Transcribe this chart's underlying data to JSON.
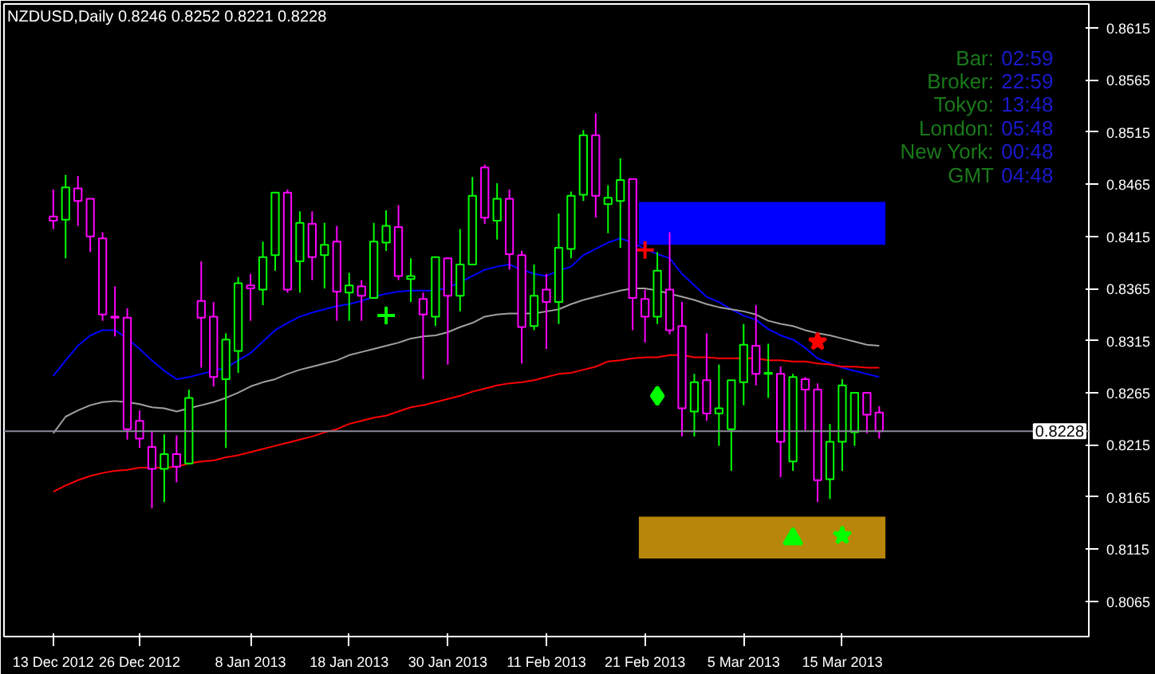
{
  "chart_data": {
    "type": "candlestick",
    "title": "NZDUSD,Daily 0.8246 0.8252 0.8221 0.8228",
    "categories": [
      "13 Dec 2012",
      null,
      null,
      null,
      null,
      null,
      null,
      "26 Dec 2012",
      null,
      null,
      null,
      null,
      null,
      null,
      null,
      null,
      "8 Jan 2013",
      null,
      null,
      null,
      null,
      null,
      null,
      null,
      "18 Jan 2013",
      null,
      null,
      null,
      null,
      null,
      null,
      null,
      "30 Jan 2013",
      null,
      null,
      null,
      null,
      null,
      null,
      null,
      "11 Feb 2013",
      null,
      null,
      null,
      null,
      null,
      null,
      null,
      "21 Feb 2013",
      null,
      null,
      null,
      null,
      null,
      null,
      null,
      "5 Mar 2013",
      null,
      null,
      null,
      null,
      null,
      null,
      null,
      "15 Mar 2013",
      null,
      null,
      null
    ],
    "ohlc": [
      [
        0.8434,
        0.846,
        0.8422,
        0.843
      ],
      [
        0.8431,
        0.8474,
        0.8394,
        0.8462
      ],
      [
        0.8461,
        0.8473,
        0.8425,
        0.8449
      ],
      [
        0.8451,
        0.8451,
        0.84,
        0.8415
      ],
      [
        0.8413,
        0.8419,
        0.8334,
        0.834
      ],
      [
        0.8338,
        0.8367,
        0.8319,
        0.8337
      ],
      [
        0.8337,
        0.8346,
        0.822,
        0.823
      ],
      [
        0.8238,
        0.8248,
        0.8212,
        0.8221
      ],
      [
        0.8213,
        0.8228,
        0.8154,
        0.8192
      ],
      [
        0.8192,
        0.8225,
        0.816,
        0.8206
      ],
      [
        0.8206,
        0.8224,
        0.8179,
        0.8194
      ],
      [
        0.8197,
        0.8268,
        0.8196,
        0.826
      ],
      [
        0.8353,
        0.8391,
        0.8289,
        0.8337
      ],
      [
        0.8338,
        0.8352,
        0.8271,
        0.828
      ],
      [
        0.8278,
        0.8322,
        0.8212,
        0.8316
      ],
      [
        0.8305,
        0.8376,
        0.8284,
        0.837
      ],
      [
        0.8368,
        0.8379,
        0.8334,
        0.8365
      ],
      [
        0.8364,
        0.841,
        0.8349,
        0.8395
      ],
      [
        0.8397,
        0.8457,
        0.8382,
        0.8457
      ],
      [
        0.8457,
        0.846,
        0.8361,
        0.8364
      ],
      [
        0.8391,
        0.8439,
        0.8361,
        0.8428
      ],
      [
        0.8427,
        0.8439,
        0.8373,
        0.8395
      ],
      [
        0.8397,
        0.8428,
        0.8365,
        0.8407
      ],
      [
        0.841,
        0.8425,
        0.8334,
        0.8362
      ],
      [
        0.8361,
        0.838,
        0.8334,
        0.8368
      ],
      [
        0.8367,
        0.8373,
        0.8334,
        0.8358
      ],
      [
        0.8356,
        0.8428,
        0.8355,
        0.841
      ],
      [
        0.8409,
        0.844,
        0.8401,
        0.8425
      ],
      [
        0.8424,
        0.8445,
        0.8373,
        0.8377
      ],
      [
        0.8374,
        0.8394,
        0.8352,
        0.8377
      ],
      [
        0.8355,
        0.8361,
        0.8278,
        0.834
      ],
      [
        0.8338,
        0.8395,
        0.8329,
        0.8395
      ],
      [
        0.8394,
        0.8394,
        0.8292,
        0.8358
      ],
      [
        0.8358,
        0.8422,
        0.8343,
        0.8388
      ],
      [
        0.8388,
        0.8472,
        0.8388,
        0.8454
      ],
      [
        0.8481,
        0.8484,
        0.8427,
        0.8433
      ],
      [
        0.843,
        0.8466,
        0.8412,
        0.8451
      ],
      [
        0.8451,
        0.846,
        0.8383,
        0.8398
      ],
      [
        0.8397,
        0.8401,
        0.8293,
        0.8328
      ],
      [
        0.8329,
        0.8388,
        0.8325,
        0.8358
      ],
      [
        0.8364,
        0.8379,
        0.8307,
        0.8352
      ],
      [
        0.8352,
        0.8437,
        0.8331,
        0.8404
      ],
      [
        0.8403,
        0.8458,
        0.8394,
        0.8454
      ],
      [
        0.8455,
        0.8517,
        0.8449,
        0.8512
      ],
      [
        0.8512,
        0.8533,
        0.8433,
        0.8454
      ],
      [
        0.8446,
        0.8464,
        0.8418,
        0.8452
      ],
      [
        0.8449,
        0.849,
        0.8404,
        0.8469
      ],
      [
        0.847,
        0.847,
        0.8325,
        0.8356
      ],
      [
        0.8355,
        0.8364,
        0.8313,
        0.8338
      ],
      [
        0.8338,
        0.84,
        0.8331,
        0.8382
      ],
      [
        0.8364,
        0.8419,
        0.8321,
        0.8325
      ],
      [
        0.8329,
        0.8352,
        0.8223,
        0.825
      ],
      [
        0.8247,
        0.8283,
        0.8223,
        0.8275
      ],
      [
        0.8277,
        0.8322,
        0.8238,
        0.8245
      ],
      [
        0.8245,
        0.8292,
        0.8214,
        0.825
      ],
      [
        0.823,
        0.8277,
        0.819,
        0.8277
      ],
      [
        0.8275,
        0.8331,
        0.8253,
        0.8311
      ],
      [
        0.831,
        0.8349,
        0.8272,
        0.8283
      ],
      [
        0.8283,
        0.8312,
        0.826,
        0.8284
      ],
      [
        0.8283,
        0.829,
        0.8184,
        0.8218
      ],
      [
        0.8199,
        0.8283,
        0.819,
        0.828
      ],
      [
        0.8278,
        0.828,
        0.8229,
        0.8268
      ],
      [
        0.8268,
        0.8274,
        0.816,
        0.8181
      ],
      [
        0.8182,
        0.8235,
        0.8163,
        0.8218
      ],
      [
        0.8218,
        0.8278,
        0.819,
        0.8272
      ],
      [
        0.8227,
        0.8265,
        0.8214,
        0.8265
      ],
      [
        0.8265,
        0.8265,
        0.8226,
        0.8244
      ],
      [
        0.8246,
        0.8252,
        0.8221,
        0.8228
      ]
    ],
    "colors": [
      "#ff00ff",
      "#00ff00",
      "#ff00ff",
      "#ff00ff",
      "#ff00ff",
      "#ff00ff",
      "#ff00ff",
      "#ff00ff",
      "#ff00ff",
      "#00ff00",
      "#ff00ff",
      "#00ff00",
      "#ff00ff",
      "#ff00ff",
      "#00ff00",
      "#00ff00",
      "#ff00ff",
      "#00ff00",
      "#00ff00",
      "#ff00ff",
      "#00ff00",
      "#ff00ff",
      "#00ff00",
      "#ff00ff",
      "#00ff00",
      "#ff00ff",
      "#00ff00",
      "#00ff00",
      "#ff00ff",
      "#00ff00",
      "#ff00ff",
      "#00ff00",
      "#ff00ff",
      "#00ff00",
      "#00ff00",
      "#ff00ff",
      "#00ff00",
      "#ff00ff",
      "#ff00ff",
      "#00ff00",
      "#ff00ff",
      "#00ff00",
      "#00ff00",
      "#00ff00",
      "#ff00ff",
      "#00ff00",
      "#00ff00",
      "#ff00ff",
      "#ff00ff",
      "#00ff00",
      "#ff00ff",
      "#ff00ff",
      "#00ff00",
      "#ff00ff",
      "#00ff00",
      "#00ff00",
      "#00ff00",
      "#ff00ff",
      "#00ff00",
      "#ff00ff",
      "#00ff00",
      "#ff00ff",
      "#ff00ff",
      "#00ff00",
      "#00ff00",
      "#00ff00",
      "#ff00ff",
      "#ff00ff"
    ],
    "ylim": [
      0.8031,
      0.8638
    ],
    "yticks": [
      0.8065,
      0.8115,
      0.8165,
      0.8215,
      0.8265,
      0.8315,
      0.8365,
      0.8415,
      0.8465,
      0.8515,
      0.8565,
      0.8615
    ],
    "ref_lines": [
      {
        "axis": "y",
        "value": 0.8228,
        "label": "0.8228",
        "color": "#8a8a9a"
      }
    ],
    "bands": [
      {
        "axis": "y",
        "from": 0.8407,
        "to": 0.8448,
        "color": "#0000ff"
      },
      {
        "axis": "y",
        "from": 0.8106,
        "to": 0.8146,
        "color": "#b8860b"
      }
    ],
    "series": [
      {
        "type": "line",
        "color": "#0000ff",
        "values": [
          0.8281,
          0.8296,
          0.831,
          0.832,
          0.8325,
          0.8325,
          0.8317,
          0.8307,
          0.8296,
          0.8286,
          0.8278,
          0.828,
          0.8283,
          0.8286,
          0.8289,
          0.8296,
          0.8303,
          0.8314,
          0.8325,
          0.8332,
          0.8338,
          0.8342,
          0.8345,
          0.8348,
          0.835,
          0.8353,
          0.8357,
          0.836,
          0.8362,
          0.8363,
          0.8363,
          0.8363,
          0.8366,
          0.8371,
          0.8377,
          0.8383,
          0.8386,
          0.8388,
          0.8383,
          0.8379,
          0.8377,
          0.8382,
          0.8386,
          0.8397,
          0.8403,
          0.8409,
          0.8413,
          0.8409,
          0.8403,
          0.8398,
          0.8394,
          0.8379,
          0.8368,
          0.8357,
          0.8352,
          0.8345,
          0.8339,
          0.8335,
          0.8326,
          0.832,
          0.8316,
          0.8308,
          0.8298,
          0.8293,
          0.8289,
          0.8286,
          0.8283,
          0.828
        ]
      },
      {
        "type": "line",
        "color": "#a0a0a0",
        "values": [
          0.8226,
          0.8242,
          0.8248,
          0.8253,
          0.8256,
          0.8257,
          0.8256,
          0.8254,
          0.8251,
          0.825,
          0.8247,
          0.825,
          0.8253,
          0.8256,
          0.826,
          0.8265,
          0.8271,
          0.8275,
          0.8278,
          0.8283,
          0.8287,
          0.829,
          0.8293,
          0.8296,
          0.8301,
          0.8304,
          0.8307,
          0.831,
          0.8313,
          0.8317,
          0.8319,
          0.832,
          0.8323,
          0.8328,
          0.8332,
          0.8338,
          0.834,
          0.8341,
          0.8341,
          0.8341,
          0.8343,
          0.8345,
          0.835,
          0.8354,
          0.8357,
          0.836,
          0.8363,
          0.8365,
          0.8365,
          0.8363,
          0.836,
          0.8357,
          0.8354,
          0.835,
          0.8347,
          0.8345,
          0.8343,
          0.834,
          0.8334,
          0.8331,
          0.8329,
          0.8325,
          0.8322,
          0.832,
          0.8317,
          0.8314,
          0.8311,
          0.831
        ]
      },
      {
        "type": "line",
        "color": "#ff0000",
        "values": [
          0.817,
          0.8176,
          0.8181,
          0.8185,
          0.8188,
          0.819,
          0.8191,
          0.8193,
          0.8193,
          0.8193,
          0.8194,
          0.8197,
          0.8199,
          0.82,
          0.8203,
          0.8205,
          0.8208,
          0.8211,
          0.8214,
          0.8217,
          0.822,
          0.8223,
          0.8227,
          0.823,
          0.8235,
          0.8238,
          0.8241,
          0.8243,
          0.8247,
          0.8251,
          0.8253,
          0.8256,
          0.8259,
          0.8262,
          0.8266,
          0.8269,
          0.8272,
          0.8274,
          0.8275,
          0.8277,
          0.828,
          0.8283,
          0.8284,
          0.8287,
          0.829,
          0.8295,
          0.8296,
          0.8298,
          0.8299,
          0.8299,
          0.8301,
          0.8301,
          0.8299,
          0.8299,
          0.8298,
          0.8298,
          0.8298,
          0.8298,
          0.8296,
          0.8296,
          0.8295,
          0.8295,
          0.8293,
          0.8292,
          0.829,
          0.829,
          0.8289,
          0.8289
        ]
      },
      {
        "type": "scatter",
        "marker": "cross",
        "color": "#00ff00",
        "values": [
          null,
          null,
          null,
          null,
          null,
          null,
          null,
          null,
          null,
          null,
          null,
          null,
          null,
          null,
          null,
          null,
          null,
          null,
          null,
          null,
          null,
          null,
          null,
          null,
          null,
          null,
          null,
          0.8339,
          null,
          null,
          null,
          null,
          null,
          null,
          null,
          null,
          null,
          null,
          null,
          null,
          null,
          null,
          null,
          null,
          null,
          null,
          null,
          null,
          null,
          null,
          null,
          null,
          null,
          null,
          null,
          null,
          null,
          null,
          null,
          null,
          null,
          null,
          null,
          null,
          null,
          null,
          null,
          null
        ]
      },
      {
        "type": "scatter",
        "marker": "cross",
        "color": "#ff0000",
        "values": [
          null,
          null,
          null,
          null,
          null,
          null,
          null,
          null,
          null,
          null,
          null,
          null,
          null,
          null,
          null,
          null,
          null,
          null,
          null,
          null,
          null,
          null,
          null,
          null,
          null,
          null,
          null,
          null,
          null,
          null,
          null,
          null,
          null,
          null,
          null,
          null,
          null,
          null,
          null,
          null,
          null,
          null,
          null,
          null,
          null,
          null,
          null,
          null,
          0.8402,
          null,
          null,
          null,
          null,
          null,
          null,
          null,
          null,
          null,
          null,
          null,
          null,
          null,
          null,
          null,
          null,
          null,
          null,
          null
        ]
      },
      {
        "type": "scatter",
        "marker": "diamond",
        "color": "#00ff00",
        "values": [
          null,
          null,
          null,
          null,
          null,
          null,
          null,
          null,
          null,
          null,
          null,
          null,
          null,
          null,
          null,
          null,
          null,
          null,
          null,
          null,
          null,
          null,
          null,
          null,
          null,
          null,
          null,
          null,
          null,
          null,
          null,
          null,
          null,
          null,
          null,
          null,
          null,
          null,
          null,
          null,
          null,
          null,
          null,
          null,
          null,
          null,
          null,
          null,
          null,
          0.8262,
          null,
          null,
          null,
          null,
          null,
          null,
          null,
          null,
          null,
          null,
          null,
          null,
          null,
          null,
          null,
          null,
          null,
          null
        ]
      },
      {
        "type": "scatter",
        "marker": "star",
        "color": "#ff0000",
        "values": [
          null,
          null,
          null,
          null,
          null,
          null,
          null,
          null,
          null,
          null,
          null,
          null,
          null,
          null,
          null,
          null,
          null,
          null,
          null,
          null,
          null,
          null,
          null,
          null,
          null,
          null,
          null,
          null,
          null,
          null,
          null,
          null,
          null,
          null,
          null,
          null,
          null,
          null,
          null,
          null,
          null,
          null,
          null,
          null,
          null,
          null,
          null,
          null,
          null,
          null,
          null,
          null,
          null,
          null,
          null,
          null,
          null,
          null,
          null,
          null,
          null,
          null,
          0.8314,
          null,
          null,
          null,
          null,
          null
        ]
      },
      {
        "type": "scatter",
        "marker": "triangle",
        "color": "#00ff00",
        "values": [
          null,
          null,
          null,
          null,
          null,
          null,
          null,
          null,
          null,
          null,
          null,
          null,
          null,
          null,
          null,
          null,
          null,
          null,
          null,
          null,
          null,
          null,
          null,
          null,
          null,
          null,
          null,
          null,
          null,
          null,
          null,
          null,
          null,
          null,
          null,
          null,
          null,
          null,
          null,
          null,
          null,
          null,
          null,
          null,
          null,
          null,
          null,
          null,
          null,
          null,
          null,
          null,
          null,
          null,
          null,
          null,
          null,
          null,
          null,
          null,
          0.8125,
          null,
          null,
          null,
          null,
          null,
          null,
          null
        ]
      },
      {
        "type": "scatter",
        "marker": "star",
        "color": "#00ff00",
        "values": [
          null,
          null,
          null,
          null,
          null,
          null,
          null,
          null,
          null,
          null,
          null,
          null,
          null,
          null,
          null,
          null,
          null,
          null,
          null,
          null,
          null,
          null,
          null,
          null,
          null,
          null,
          null,
          null,
          null,
          null,
          null,
          null,
          null,
          null,
          null,
          null,
          null,
          null,
          null,
          null,
          null,
          null,
          null,
          null,
          null,
          null,
          null,
          null,
          null,
          null,
          null,
          null,
          null,
          null,
          null,
          null,
          null,
          null,
          null,
          null,
          null,
          null,
          null,
          null,
          0.8128,
          null,
          null,
          null
        ]
      }
    ],
    "annotations": [
      "Bar: 02:59",
      "Broker: 22:59",
      "Tokyo: 13:48",
      "London: 05:48",
      "New York: 00:48",
      "GMT 04:48"
    ]
  }
}
